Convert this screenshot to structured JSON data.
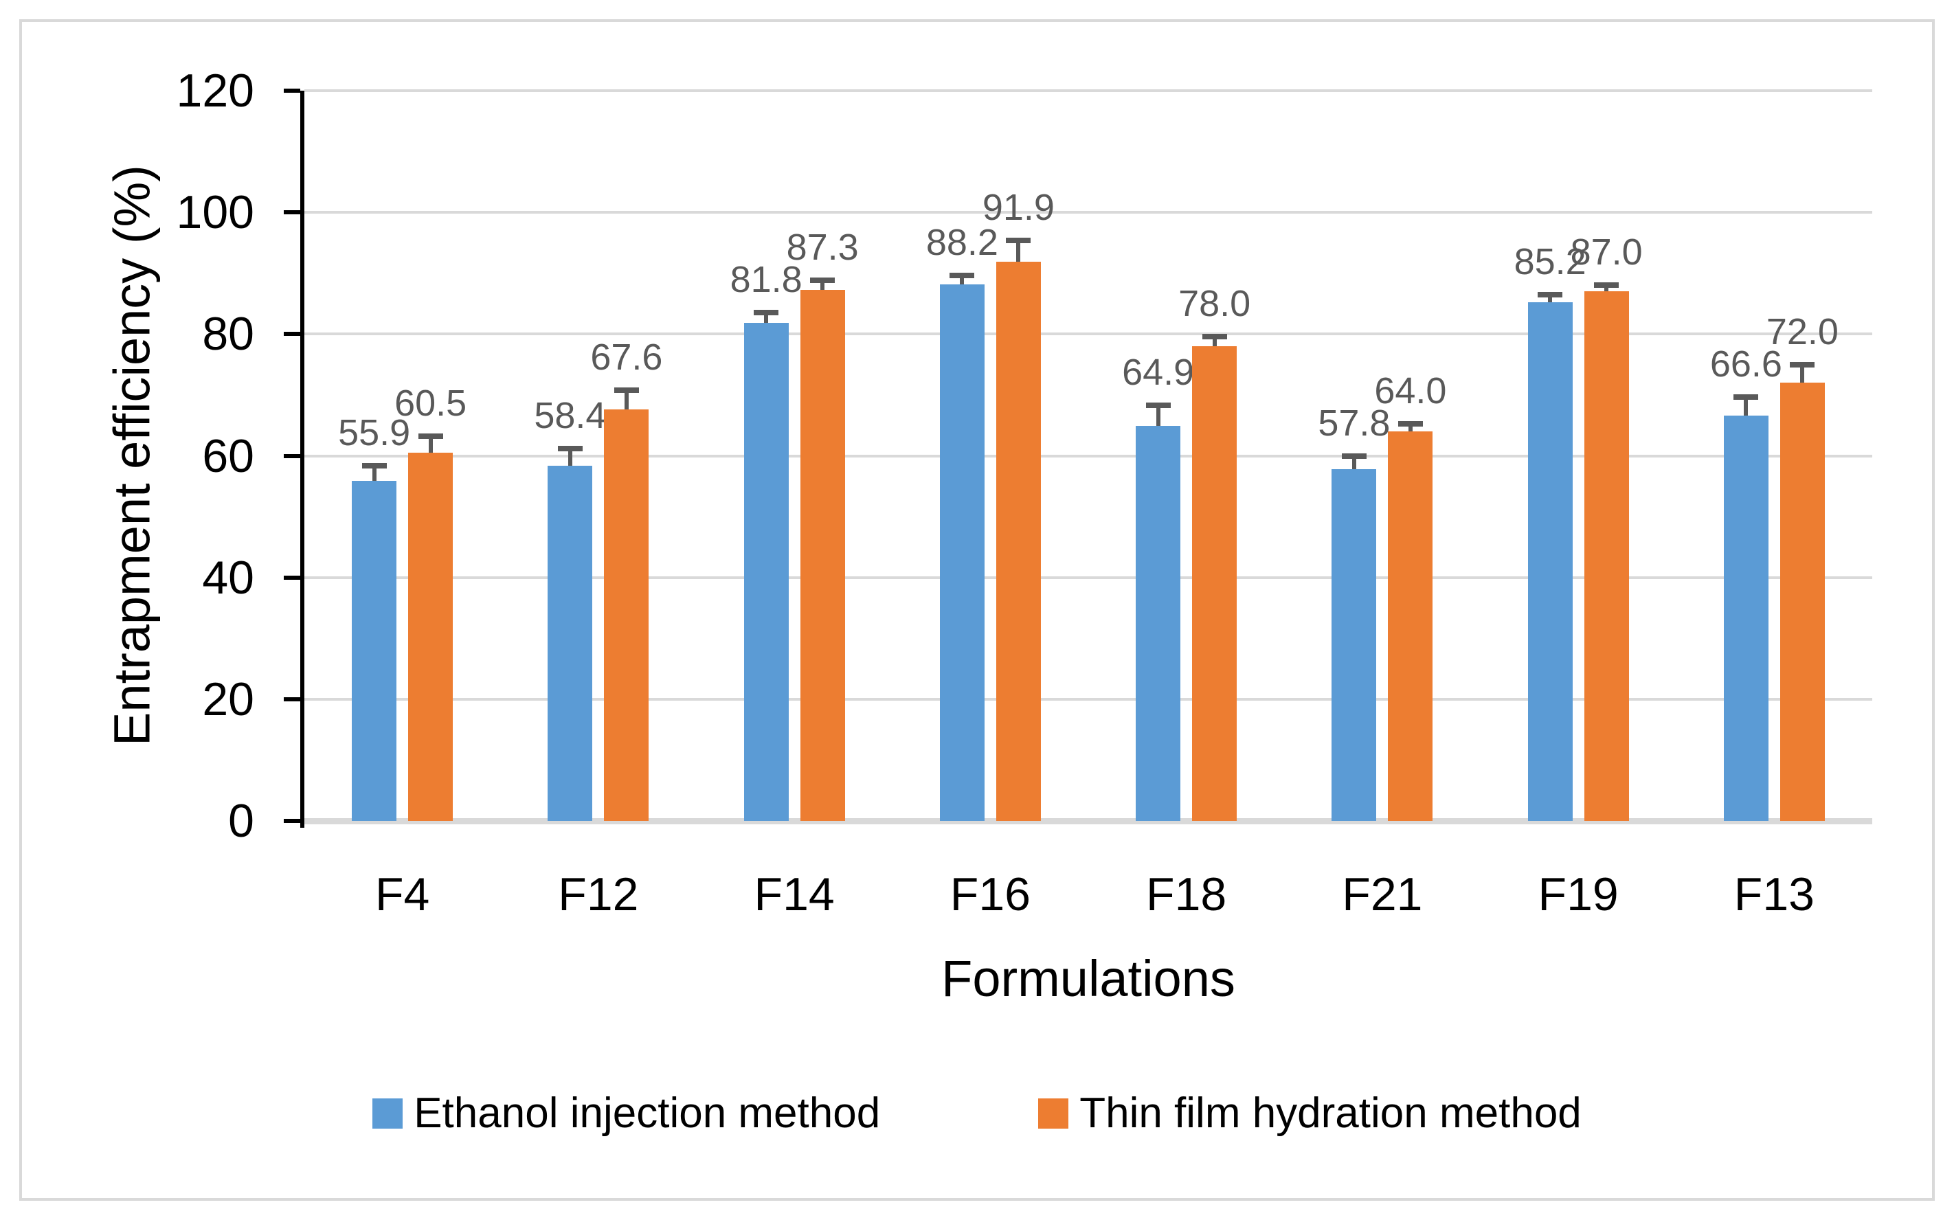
{
  "chart_data": {
    "type": "bar",
    "title": "",
    "xlabel": "Formulations",
    "ylabel": "Entrapment efficiency (%)",
    "categories": [
      "F4",
      "F12",
      "F14",
      "F16",
      "F18",
      "F21",
      "F19",
      "F13"
    ],
    "series": [
      {
        "name": "Ethanol injection method",
        "color": "#5B9BD5",
        "values": [
          55.9,
          58.4,
          81.8,
          88.2,
          64.9,
          57.8,
          85.2,
          66.6
        ],
        "errors_up": [
          2.5,
          2.8,
          1.7,
          1.4,
          3.4,
          2.1,
          1.3,
          3.0
        ]
      },
      {
        "name": "Thin film hydration method",
        "color": "#ED7D31",
        "values": [
          60.5,
          67.6,
          87.3,
          91.9,
          78.0,
          64.0,
          87.0,
          72.0
        ],
        "errors_up": [
          2.7,
          3.2,
          1.5,
          3.5,
          1.6,
          1.2,
          1.0,
          3.0
        ]
      }
    ],
    "ylim": [
      0,
      120
    ],
    "yticks": [
      0,
      20,
      40,
      60,
      80,
      100,
      120
    ],
    "grid": true,
    "legend_position": "bottom",
    "data_label_decimals": 1,
    "data_label_color": "#595959",
    "error_bar_color": "#595959",
    "grid_color": "#D9D9D9",
    "axis_color": "#000000",
    "bar_colors": {
      "series1": "#5B9BD5",
      "series2": "#ED7D31"
    }
  }
}
